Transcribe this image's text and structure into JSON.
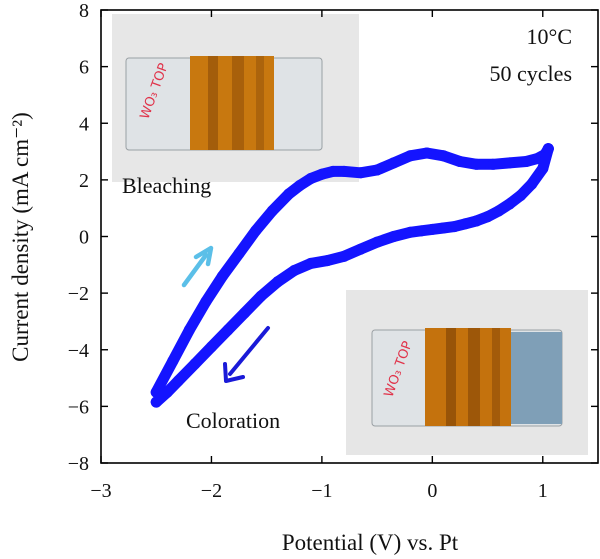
{
  "chart_data": {
    "type": "line",
    "xlabel": "Potential (V) vs. Pt",
    "ylabel": "Current density (mA cm⁻²)",
    "xlim": [
      -3,
      1.5
    ],
    "ylim": [
      -8,
      8
    ],
    "xticks": [
      -3,
      -2,
      -1,
      0,
      1
    ],
    "yticks": [
      -8,
      -6,
      -4,
      -2,
      0,
      2,
      4,
      6,
      8
    ],
    "xtick_labels": [
      "−3",
      "−2",
      "−1",
      "0",
      "1"
    ],
    "ytick_labels": [
      "−8",
      "−6",
      "−4",
      "−2",
      "0",
      "2",
      "4",
      "6",
      "8"
    ],
    "grid": false,
    "annotations": {
      "temperature": "10°C",
      "cycles": "50 cycles",
      "bleaching_label": "Bleaching",
      "coloration_label": "Coloration"
    },
    "insets": {
      "bleaching_photo_text": "WO₃ TOP",
      "coloration_photo_text": "WO₃ TOP"
    },
    "series": [
      {
        "color": "#1414ff",
        "segment": "upper",
        "x": [
          -2.5,
          -2.35,
          -2.2,
          -2.05,
          -1.9,
          -1.75,
          -1.6,
          -1.45,
          -1.3,
          -1.2,
          -1.1,
          -1.0,
          -0.9,
          -0.8,
          -0.65,
          -0.5,
          -0.35,
          -0.2,
          -0.05,
          0.1,
          0.25,
          0.4,
          0.55,
          0.7,
          0.85,
          0.95,
          1.02,
          1.05
        ],
        "y": [
          -5.5,
          -4.4,
          -3.3,
          -2.3,
          -1.4,
          -0.6,
          0.2,
          0.9,
          1.5,
          1.8,
          2.05,
          2.2,
          2.3,
          2.3,
          2.25,
          2.35,
          2.6,
          2.85,
          2.95,
          2.85,
          2.65,
          2.55,
          2.55,
          2.6,
          2.65,
          2.75,
          2.9,
          3.1
        ]
      },
      {
        "color": "#1414ff",
        "segment": "lower",
        "x": [
          1.05,
          1.0,
          0.9,
          0.8,
          0.7,
          0.6,
          0.5,
          0.4,
          0.3,
          0.2,
          0.1,
          0.0,
          -0.1,
          -0.2,
          -0.35,
          -0.5,
          -0.65,
          -0.8,
          -0.95,
          -1.1,
          -1.25,
          -1.4,
          -1.55,
          -1.7,
          -1.85,
          -2.0,
          -2.15,
          -2.3,
          -2.4,
          -2.5
        ],
        "y": [
          3.1,
          2.4,
          1.85,
          1.45,
          1.15,
          0.9,
          0.7,
          0.55,
          0.45,
          0.35,
          0.3,
          0.25,
          0.2,
          0.15,
          0.0,
          -0.2,
          -0.45,
          -0.7,
          -0.85,
          -0.95,
          -1.2,
          -1.6,
          -2.1,
          -2.7,
          -3.3,
          -3.9,
          -4.5,
          -5.1,
          -5.5,
          -5.85
        ]
      }
    ]
  }
}
